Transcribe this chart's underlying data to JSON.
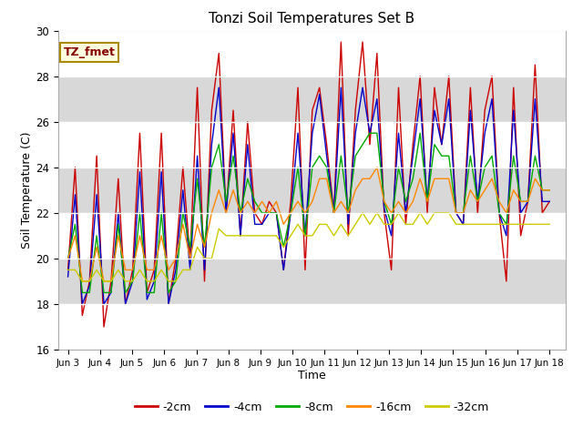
{
  "title": "Tonzi Soil Temperatures Set B",
  "xlabel": "Time",
  "ylabel": "Soil Temperature (C)",
  "ylim": [
    16,
    30
  ],
  "yticks": [
    16,
    18,
    20,
    22,
    24,
    26,
    28,
    30
  ],
  "annotation": "TZ_fmet",
  "legend_labels": [
    "-2cm",
    "-4cm",
    "-8cm",
    "-16cm",
    "-32cm"
  ],
  "line_colors": [
    "#cc0000",
    "#0000cc",
    "#00aa00",
    "#ff8800",
    "#cccc00"
  ],
  "fig_bg": "#ffffff",
  "plot_bg": "#e8e8e8",
  "band_colors": [
    "#e0e0e0",
    "#d0d0d0"
  ],
  "x_tick_labels": [
    "Jun 3",
    "Jun 4",
    "Jun 5",
    "Jun 6",
    "Jun 7",
    "Jun 8",
    "Jun 9",
    "Jun 10",
    "Jun 11",
    "Jun 12",
    "Jun 13",
    "Jun 14",
    "Jun 15",
    "Jun 16",
    "Jun 17",
    "Jun 18"
  ],
  "t_2cm": [
    19.5,
    24.0,
    17.5,
    19.0,
    24.5,
    17.0,
    19.0,
    23.5,
    18.0,
    19.5,
    25.5,
    18.5,
    19.5,
    25.5,
    18.0,
    20.0,
    24.0,
    20.0,
    27.5,
    19.0,
    26.5,
    29.0,
    22.0,
    26.5,
    21.0,
    26.0,
    22.0,
    21.5,
    22.5,
    22.0,
    19.5,
    22.5,
    27.5,
    19.5,
    26.5,
    27.5,
    25.0,
    22.0,
    29.5,
    21.0,
    26.5,
    29.5,
    25.0,
    29.0,
    22.0,
    19.5,
    27.5,
    21.5,
    25.0,
    28.0,
    22.0,
    27.5,
    25.0,
    28.0,
    22.0,
    21.5,
    27.5,
    22.0,
    26.5,
    28.0,
    22.0,
    19.0,
    27.5,
    21.0,
    22.5,
    28.5,
    22.0,
    22.5
  ],
  "t_4cm": [
    19.2,
    22.8,
    18.0,
    18.8,
    22.8,
    18.0,
    18.5,
    22.0,
    18.0,
    19.0,
    23.8,
    18.2,
    19.0,
    23.8,
    18.0,
    19.5,
    23.0,
    19.5,
    24.5,
    19.5,
    25.0,
    27.5,
    22.0,
    25.5,
    21.0,
    25.0,
    21.5,
    21.5,
    22.0,
    22.0,
    19.5,
    22.0,
    25.5,
    21.0,
    25.5,
    27.2,
    24.5,
    22.0,
    27.5,
    21.5,
    25.5,
    27.5,
    25.5,
    27.0,
    22.2,
    21.0,
    25.5,
    22.0,
    24.5,
    27.0,
    22.5,
    26.5,
    25.0,
    27.0,
    22.0,
    21.5,
    26.5,
    22.5,
    25.5,
    27.0,
    22.0,
    21.0,
    26.5,
    22.0,
    22.5,
    27.0,
    22.5,
    22.5
  ],
  "t_8cm": [
    20.0,
    21.5,
    18.5,
    18.5,
    21.0,
    18.5,
    18.5,
    21.5,
    18.5,
    19.0,
    22.0,
    18.5,
    18.5,
    22.0,
    18.5,
    19.0,
    22.0,
    20.5,
    23.5,
    20.5,
    24.0,
    25.0,
    22.5,
    24.5,
    22.0,
    23.5,
    22.5,
    22.0,
    22.0,
    22.0,
    20.5,
    22.0,
    24.0,
    21.0,
    24.0,
    24.5,
    24.0,
    22.0,
    24.5,
    22.0,
    24.5,
    25.0,
    25.5,
    25.5,
    22.5,
    21.5,
    24.0,
    22.5,
    23.5,
    25.5,
    22.5,
    25.0,
    24.5,
    24.5,
    22.0,
    22.0,
    24.5,
    22.5,
    24.0,
    24.5,
    22.0,
    21.5,
    24.5,
    22.5,
    22.5,
    24.5,
    23.0,
    23.0
  ],
  "t_16cm": [
    20.0,
    21.0,
    19.0,
    19.0,
    20.5,
    19.0,
    19.0,
    21.0,
    19.5,
    19.5,
    21.0,
    19.5,
    19.5,
    21.0,
    19.5,
    20.0,
    21.5,
    20.0,
    21.5,
    20.5,
    22.0,
    23.0,
    22.0,
    23.0,
    22.0,
    22.5,
    22.0,
    22.5,
    22.0,
    22.5,
    21.5,
    22.0,
    22.5,
    22.0,
    22.5,
    23.5,
    23.5,
    22.0,
    22.5,
    22.0,
    23.0,
    23.5,
    23.5,
    24.0,
    22.5,
    22.0,
    22.5,
    22.0,
    22.5,
    23.5,
    22.5,
    23.5,
    23.5,
    23.5,
    22.0,
    22.0,
    23.0,
    22.5,
    23.0,
    23.5,
    22.5,
    22.0,
    23.0,
    22.5,
    22.5,
    23.5,
    23.0,
    23.0
  ],
  "t_32cm": [
    19.5,
    19.5,
    19.0,
    19.0,
    19.5,
    19.0,
    19.0,
    19.5,
    19.0,
    19.0,
    19.5,
    19.0,
    19.0,
    19.5,
    19.0,
    19.0,
    19.5,
    19.5,
    20.5,
    20.0,
    20.0,
    21.3,
    21.0,
    21.0,
    21.0,
    21.0,
    21.0,
    21.0,
    21.0,
    21.0,
    20.5,
    21.0,
    21.5,
    21.0,
    21.0,
    21.5,
    21.5,
    21.0,
    21.5,
    21.0,
    21.5,
    22.0,
    21.5,
    22.0,
    21.5,
    21.5,
    22.0,
    21.5,
    21.5,
    22.0,
    21.5,
    22.0,
    22.0,
    22.0,
    21.5,
    21.5,
    21.5,
    21.5,
    21.5,
    21.5,
    21.5,
    21.5,
    21.5,
    21.5,
    21.5,
    21.5,
    21.5,
    21.5
  ]
}
